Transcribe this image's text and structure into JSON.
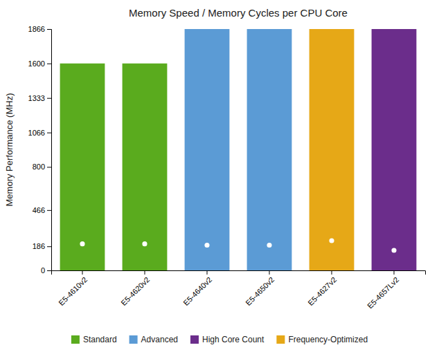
{
  "chart_data": {
    "type": "bar",
    "title": "Memory Speed / Memory Cycles per CPU Core",
    "y_label": "Memory Performance (MHz)",
    "categories": [
      "E5-4610v2",
      "E5-4620v2",
      "E5-4640v2",
      "E5-4650v2",
      "E5-4627v2",
      "E5-4657Lv2"
    ],
    "values": [
      1600,
      1600,
      1866,
      1866,
      1866,
      1866
    ],
    "colors": [
      "#5aab1e",
      "#5aab1e",
      "#5b9bd5",
      "#5b9bd5",
      "#e6a817",
      "#6b2d8b"
    ],
    "dots": {
      "values": [
        205,
        205,
        195,
        195,
        230,
        155
      ],
      "color": "#ffffff",
      "marker": "circle"
    },
    "legend_entries": [
      {
        "label": "Standard",
        "color": "#5aab1e"
      },
      {
        "label": "Advanced",
        "color": "#5b9bd5"
      },
      {
        "label": "High Core Count",
        "color": "#6b2d8b"
      },
      {
        "label": "Frequency-Optimized",
        "color": "#e6a817"
      }
    ],
    "legend": "bottom",
    "ylim": [
      0,
      1866
    ],
    "yticks": [
      0,
      186,
      466,
      800,
      1066,
      1333,
      1600,
      1866
    ],
    "grid": false
  }
}
